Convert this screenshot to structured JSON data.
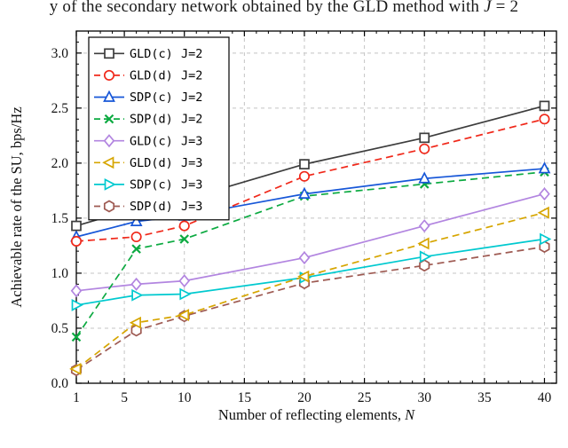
{
  "caption": {
    "prefix": "y of the secondary network obtained by the GLD method with ",
    "math": "J",
    "suffix": " = 2"
  },
  "chart_data": {
    "type": "line",
    "title": "",
    "xlabel_prefix": "Number of reflecting elements, ",
    "xlabel_var": "N",
    "ylabel": "Achievable rate of the SU, bps/Hz",
    "xlim": [
      1,
      41
    ],
    "ylim": [
      0,
      3.2
    ],
    "xticks": [
      1,
      5,
      10,
      15,
      20,
      25,
      30,
      35,
      40
    ],
    "yticks": [
      0,
      0.5,
      1,
      1.5,
      2,
      2.5,
      3
    ],
    "grid": true,
    "legend_position": "top-left",
    "x": [
      1,
      6,
      10,
      20,
      30,
      40
    ],
    "series": [
      {
        "name": "GLD(c)",
        "j": "J=2",
        "color": "#3d3d3d",
        "marker": "square",
        "dashed": false,
        "values": [
          1.43,
          1.59,
          1.67,
          1.99,
          2.23,
          2.52
        ]
      },
      {
        "name": "GLD(d)",
        "j": "J=2",
        "color": "#f0281a",
        "marker": "circle",
        "dashed": true,
        "values": [
          1.29,
          1.33,
          1.43,
          1.88,
          2.13,
          2.4
        ]
      },
      {
        "name": "SDP(c)",
        "j": "J=2",
        "color": "#1757d8",
        "marker": "triangle-up",
        "dashed": false,
        "values": [
          1.33,
          1.47,
          1.52,
          1.72,
          1.86,
          1.95
        ]
      },
      {
        "name": "SDP(d)",
        "j": "J=2",
        "color": "#0caa41",
        "marker": "x",
        "dashed": true,
        "values": [
          0.42,
          1.22,
          1.31,
          1.7,
          1.81,
          1.92
        ]
      },
      {
        "name": "GLD(c)",
        "j": "J=3",
        "color": "#b285e0",
        "marker": "diamond",
        "dashed": false,
        "values": [
          0.84,
          0.9,
          0.93,
          1.14,
          1.43,
          1.72
        ]
      },
      {
        "name": "GLD(d)",
        "j": "J=3",
        "color": "#d6a500",
        "marker": "triangle-left",
        "dashed": true,
        "values": [
          0.13,
          0.55,
          0.62,
          0.97,
          1.27,
          1.55
        ]
      },
      {
        "name": "SDP(c)",
        "j": "J=3",
        "color": "#00c9cf",
        "marker": "triangle-right",
        "dashed": false,
        "values": [
          0.71,
          0.8,
          0.81,
          0.96,
          1.15,
          1.31
        ]
      },
      {
        "name": "SDP(d)",
        "j": "J=3",
        "color": "#9e5a52",
        "marker": "hexagon",
        "dashed": true,
        "values": [
          0.12,
          0.48,
          0.61,
          0.91,
          1.07,
          1.24
        ]
      }
    ]
  }
}
